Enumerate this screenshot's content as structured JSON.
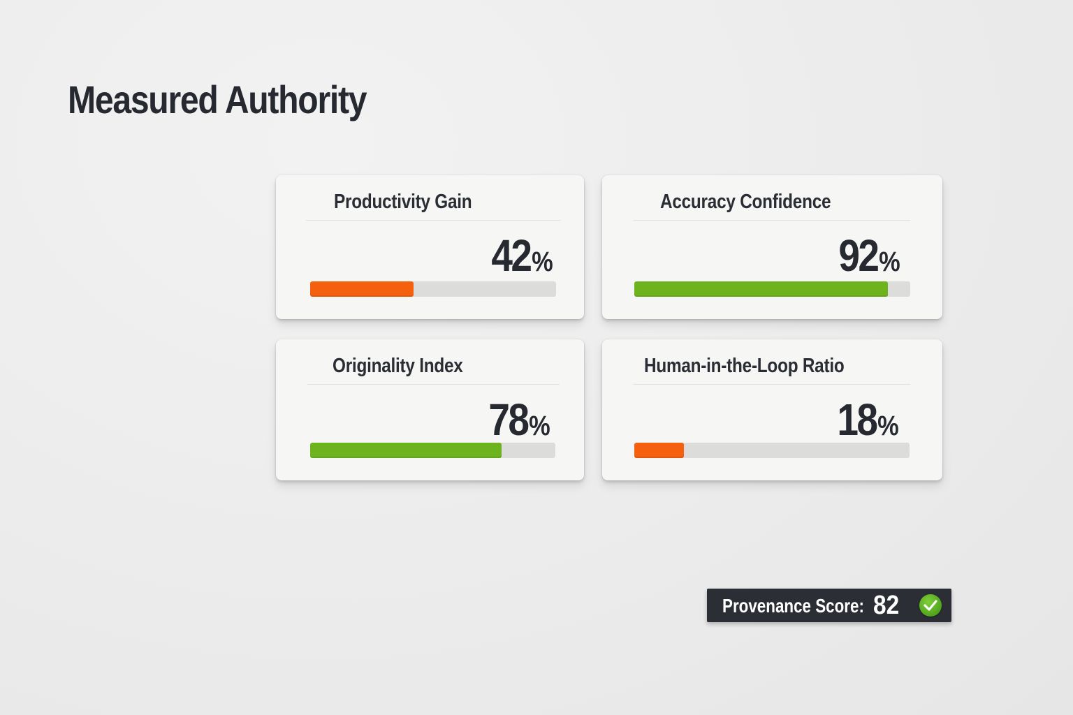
{
  "header": {
    "title": "Measured Authority"
  },
  "colors": {
    "background": "#ececec",
    "card": "#f6f6f5",
    "text": "#262a30",
    "track": "#dcdcdb",
    "orange": "#f5600f",
    "green": "#6db31d",
    "badge_bg": "#2b2e35"
  },
  "cards": [
    {
      "label": "Productivity Gain",
      "value": "42",
      "unit": "%",
      "percent": 42,
      "color": "#f5600f"
    },
    {
      "label": "Accuracy Confidence",
      "value": "92",
      "unit": "%",
      "percent": 92,
      "color": "#6db31d"
    },
    {
      "label": "Originality Index",
      "value": "78",
      "unit": "%",
      "percent": 78,
      "color": "#6db31d"
    },
    {
      "label": "Human-in-the-Loop Ratio",
      "value": "18",
      "unit": "%",
      "percent": 18,
      "color": "#f5600f"
    }
  ],
  "badge": {
    "label": "Provenance Score:",
    "value": "82",
    "icon": "check-circle-icon"
  },
  "chart_data": {
    "type": "bar",
    "title": "Measured Authority",
    "orientation": "horizontal",
    "categories": [
      "Productivity Gain",
      "Accuracy Confidence",
      "Originality Index",
      "Human-in-the-Loop Ratio"
    ],
    "values": [
      42,
      92,
      78,
      18
    ],
    "unit": "%",
    "ylim": [
      0,
      100
    ],
    "bar_colors": [
      "#f5600f",
      "#6db31d",
      "#6db31d",
      "#f5600f"
    ],
    "grid": false,
    "legend": "none",
    "annotations": [
      "Provenance Score: 82"
    ]
  }
}
